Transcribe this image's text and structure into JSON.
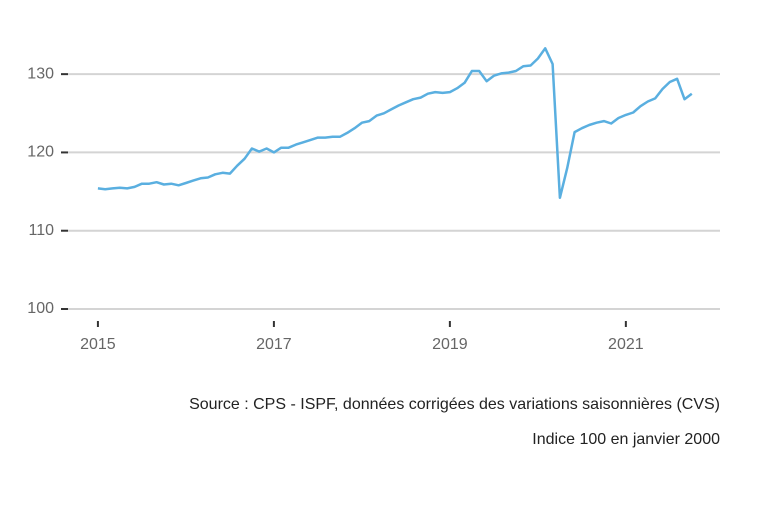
{
  "chart_data": {
    "type": "line",
    "x": [
      2015,
      2015.083,
      2015.167,
      2015.25,
      2015.333,
      2015.417,
      2015.5,
      2015.583,
      2015.667,
      2015.75,
      2015.833,
      2015.917,
      2016,
      2016.083,
      2016.167,
      2016.25,
      2016.333,
      2016.417,
      2016.5,
      2016.583,
      2016.667,
      2016.75,
      2016.833,
      2016.917,
      2017,
      2017.083,
      2017.167,
      2017.25,
      2017.333,
      2017.417,
      2017.5,
      2017.583,
      2017.667,
      2017.75,
      2017.833,
      2017.917,
      2018,
      2018.083,
      2018.167,
      2018.25,
      2018.333,
      2018.417,
      2018.5,
      2018.583,
      2018.667,
      2018.75,
      2018.833,
      2018.917,
      2019,
      2019.083,
      2019.167,
      2019.25,
      2019.333,
      2019.417,
      2019.5,
      2019.583,
      2019.667,
      2019.75,
      2019.833,
      2019.917,
      2020,
      2020.083,
      2020.167,
      2020.25,
      2020.333,
      2020.417,
      2020.5,
      2020.583,
      2020.667,
      2020.75,
      2020.833,
      2020.917,
      2021,
      2021.083,
      2021.167,
      2021.25,
      2021.333,
      2021.417,
      2021.5,
      2021.583,
      2021.667,
      2021.75
    ],
    "series": [
      {
        "color": "#5aafe0",
        "values": [
          115.4,
          115.3,
          115.4,
          115.5,
          115.4,
          115.6,
          116.0,
          116.0,
          116.2,
          115.9,
          116.0,
          115.8,
          116.1,
          116.4,
          116.7,
          116.8,
          117.2,
          117.4,
          117.3,
          118.3,
          119.2,
          120.5,
          120.1,
          120.5,
          120.0,
          120.6,
          120.6,
          121.0,
          121.3,
          121.6,
          121.9,
          121.9,
          122.0,
          122.0,
          122.5,
          123.1,
          123.8,
          124.0,
          124.7,
          125.0,
          125.5,
          126.0,
          126.4,
          126.8,
          127.0,
          127.5,
          127.7,
          127.6,
          127.7,
          128.2,
          128.9,
          130.4,
          130.4,
          129.1,
          129.8,
          130.1,
          130.2,
          130.4,
          131.0,
          131.1,
          132.0,
          133.3,
          131.3,
          114.2,
          118.0,
          122.6,
          123.1,
          123.5,
          123.8,
          124.0,
          123.7,
          124.4,
          124.8,
          125.1,
          125.9,
          126.5,
          126.9,
          128.1,
          129.0,
          129.4,
          126.8,
          127.5
        ]
      }
    ],
    "xlim": [
      2014.66,
      2022.07
    ],
    "xticks": [
      2015,
      2017,
      2019,
      2021
    ],
    "ylim": [
      100,
      135
    ],
    "yticks": [
      100,
      110,
      120,
      130
    ],
    "grid": true,
    "notes": [
      "Source : CPS - ISPF, données corrigées des variations saisonnières (CVS)",
      "Indice 100 en janvier 2000"
    ]
  }
}
